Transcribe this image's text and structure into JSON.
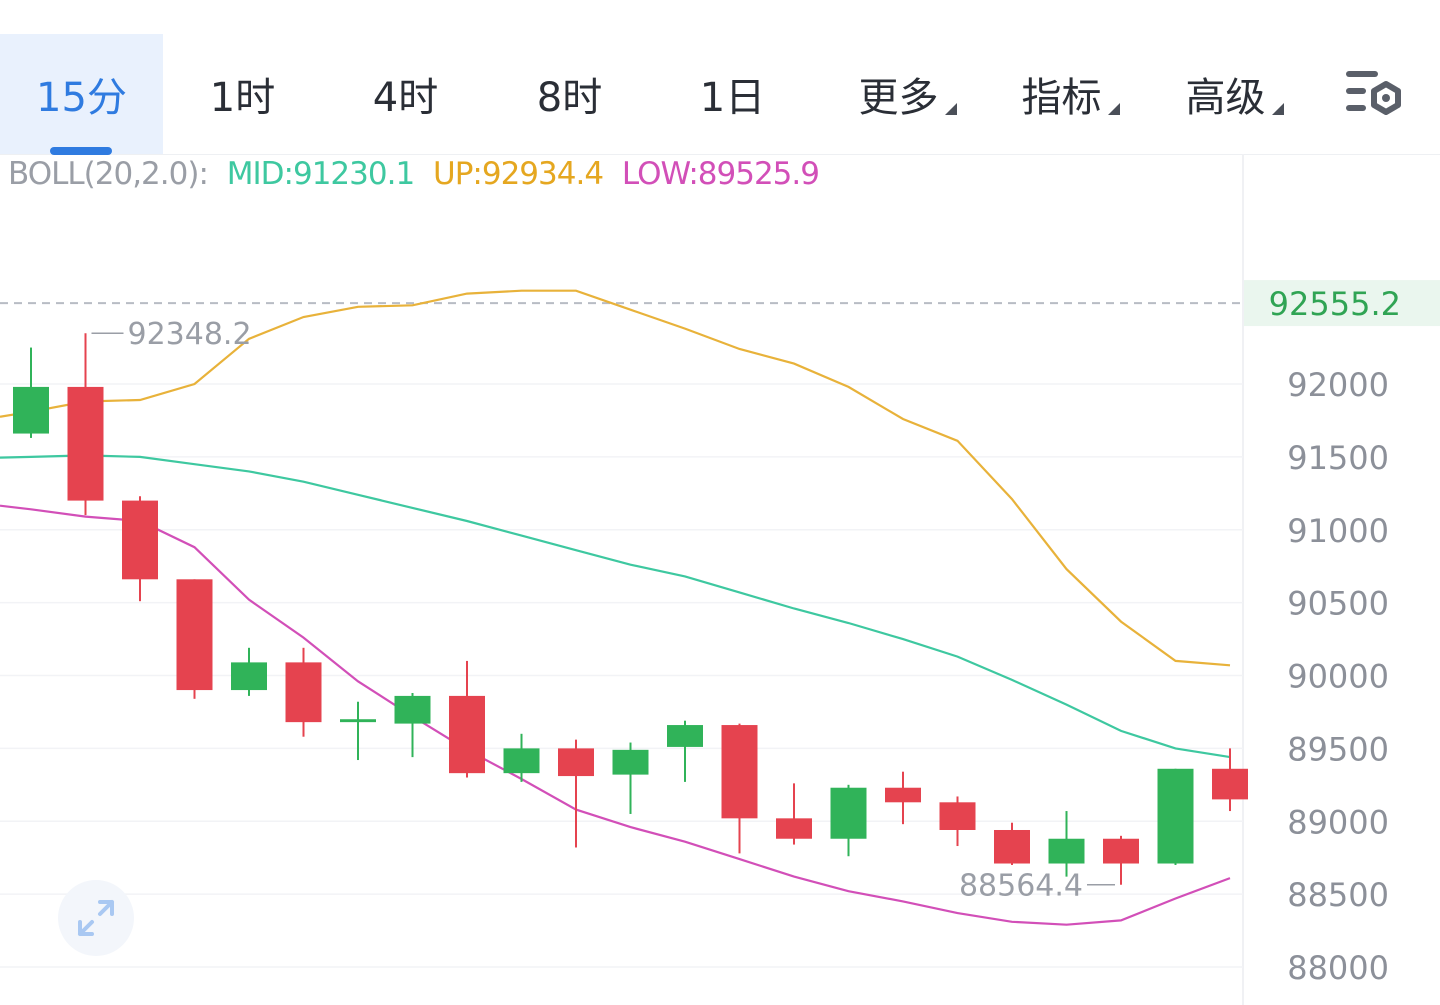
{
  "tabs": [
    {
      "label": "15分",
      "active": true,
      "dropdown": false
    },
    {
      "label": "1时",
      "active": false,
      "dropdown": false
    },
    {
      "label": "4时",
      "active": false,
      "dropdown": false
    },
    {
      "label": "8时",
      "active": false,
      "dropdown": false
    },
    {
      "label": "1日",
      "active": false,
      "dropdown": false
    },
    {
      "label": "更多",
      "active": false,
      "dropdown": true
    },
    {
      "label": "指标",
      "active": false,
      "dropdown": true
    },
    {
      "label": "高级",
      "active": false,
      "dropdown": true
    }
  ],
  "settings_icon": "settings-icon",
  "expand_icon": "expand-icon",
  "boll": {
    "label": "BOLL(20,2.0):",
    "mid": "MID:91230.1",
    "up": "UP:92934.4",
    "low": "LOW:89525.9"
  },
  "colors": {
    "up_candle": "#30b359",
    "down_candle": "#e5434f",
    "mid_line": "#3ec8a0",
    "up_line": "#e8b23a",
    "low_line": "#d24fb8",
    "active_tab": "#2f7be0",
    "current_price": "#30a454"
  },
  "chart_data": {
    "type": "candlestick",
    "ylim": [
      87800,
      93200
    ],
    "yticks": [
      92000,
      91500,
      91000,
      90500,
      90000,
      89500,
      89000,
      88500,
      88000
    ],
    "current_price": 92555.2,
    "current_price_label": "92555.2",
    "max_label": "92348.2",
    "min_label": "88564.4",
    "candles": [
      {
        "o": 91660,
        "h": 92250,
        "l": 91630,
        "c": 91980
      },
      {
        "o": 91980,
        "h": 92348.2,
        "l": 91100,
        "c": 91200
      },
      {
        "o": 91200,
        "h": 91230,
        "l": 90510,
        "c": 90660
      },
      {
        "o": 90660,
        "h": 90660,
        "l": 89840,
        "c": 89900
      },
      {
        "o": 89900,
        "h": 90190,
        "l": 89860,
        "c": 90090
      },
      {
        "o": 90090,
        "h": 90190,
        "l": 89580,
        "c": 89680
      },
      {
        "o": 89680,
        "h": 89820,
        "l": 89420,
        "c": 89700
      },
      {
        "o": 89670,
        "h": 89880,
        "l": 89440,
        "c": 89860
      },
      {
        "o": 89860,
        "h": 90100,
        "l": 89300,
        "c": 89330
      },
      {
        "o": 89330,
        "h": 89600,
        "l": 89270,
        "c": 89500
      },
      {
        "o": 89500,
        "h": 89560,
        "l": 88820,
        "c": 89310
      },
      {
        "o": 89320,
        "h": 89540,
        "l": 89050,
        "c": 89490
      },
      {
        "o": 89510,
        "h": 89690,
        "l": 89270,
        "c": 89660
      },
      {
        "o": 89660,
        "h": 89670,
        "l": 88780,
        "c": 89020
      },
      {
        "o": 89020,
        "h": 89260,
        "l": 88840,
        "c": 88880
      },
      {
        "o": 88880,
        "h": 89250,
        "l": 88760,
        "c": 89230
      },
      {
        "o": 89230,
        "h": 89340,
        "l": 88980,
        "c": 89130
      },
      {
        "o": 89130,
        "h": 89170,
        "l": 88830,
        "c": 88940
      },
      {
        "o": 88940,
        "h": 88990,
        "l": 88700,
        "c": 88710
      },
      {
        "o": 88710,
        "h": 89070,
        "l": 88620,
        "c": 88880
      },
      {
        "o": 88880,
        "h": 88900,
        "l": 88564.4,
        "c": 88710
      },
      {
        "o": 88710,
        "h": 89360,
        "l": 88700,
        "c": 89360
      },
      {
        "o": 89360,
        "h": 89500,
        "l": 89070,
        "c": 89150
      }
    ],
    "boll_up": [
      91810,
      91880,
      91890,
      92000,
      92310,
      92460,
      92530,
      92540,
      92620,
      92640,
      92640,
      92510,
      92380,
      92240,
      92140,
      91980,
      91760,
      91610,
      91210,
      90730,
      90370,
      90100,
      90070
    ],
    "boll_mid": [
      91500,
      91510,
      91500,
      91450,
      91400,
      91330,
      91240,
      91150,
      91060,
      90960,
      90860,
      90760,
      90680,
      90570,
      90460,
      90360,
      90250,
      90130,
      89970,
      89800,
      89620,
      89500,
      89440
    ],
    "boll_low": [
      91140,
      91090,
      91060,
      90880,
      90520,
      90260,
      89960,
      89720,
      89490,
      89290,
      89080,
      88960,
      88860,
      88740,
      88620,
      88520,
      88450,
      88370,
      88310,
      88290,
      88320,
      88470,
      88610
    ]
  }
}
